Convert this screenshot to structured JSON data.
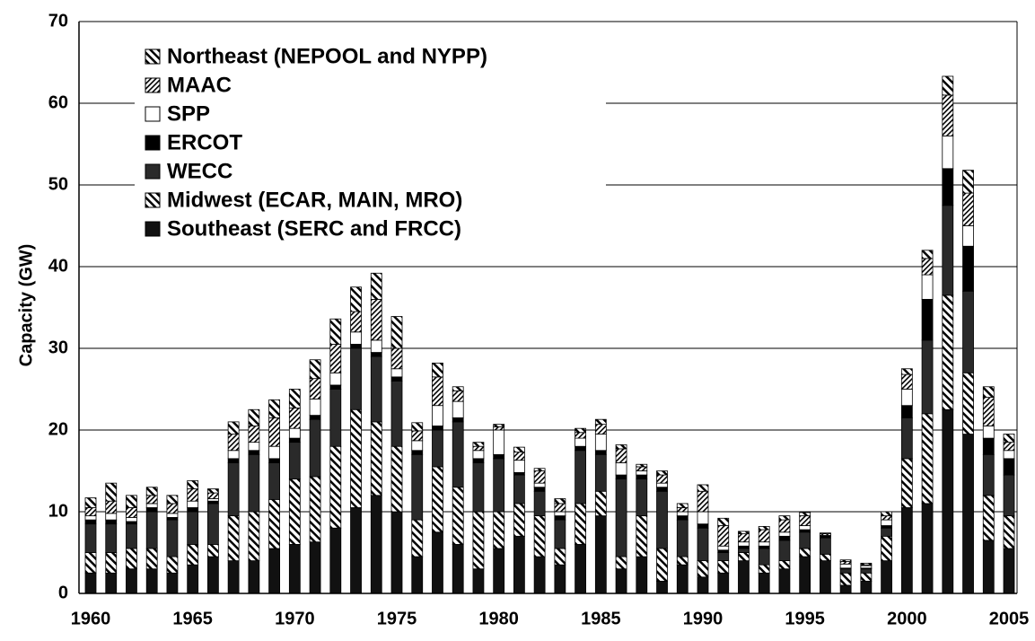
{
  "chart_data": {
    "type": "stacked-bar",
    "y_label": "Capacity (GW)",
    "categories": [
      "1960",
      null,
      null,
      null,
      null,
      "1965",
      null,
      null,
      null,
      null,
      "1970",
      null,
      null,
      null,
      null,
      "1975",
      null,
      null,
      null,
      null,
      "1980",
      null,
      null,
      null,
      null,
      "1985",
      null,
      null,
      null,
      null,
      "1990",
      null,
      null,
      null,
      null,
      "1995",
      null,
      null,
      null,
      null,
      "2000",
      null,
      null,
      null,
      null,
      "2005"
    ],
    "series": [
      {
        "name": "Southeast (SERC and FRCC)",
        "color": "#111111",
        "values": [
          2.5,
          2.5,
          3,
          3,
          2.5,
          3.5,
          4.5,
          4,
          4,
          5.5,
          6,
          6.3,
          8,
          10.5,
          12,
          10,
          4.5,
          7.5,
          6,
          3,
          5.5,
          7,
          4.5,
          3.5,
          6,
          9.5,
          3,
          4.5,
          1.5,
          3.5,
          2,
          2.5,
          4,
          2.5,
          3,
          4.5,
          4,
          1,
          1.5,
          4,
          10.5,
          11,
          22.5,
          19.5,
          6.5,
          5.5
        ]
      },
      {
        "name": "Midwest (ECAR, MAIN, MRO)",
        "color": "#111111",
        "hatch": "backslash",
        "values": [
          2.5,
          2.5,
          2.5,
          2.5,
          2,
          2.5,
          1.5,
          5.5,
          6,
          6,
          8,
          8,
          10,
          12,
          9,
          8,
          4.5,
          8,
          7,
          7,
          4.5,
          4,
          5,
          2,
          5,
          3,
          1.5,
          5,
          4,
          1,
          2,
          1.5,
          1,
          1,
          1,
          1,
          0.8,
          1.5,
          1,
          3,
          6,
          11,
          14,
          7.5,
          5.5,
          4
        ]
      },
      {
        "name": "WECC",
        "color": "#2a2a2a",
        "values": [
          3.5,
          3.5,
          3,
          4.5,
          4.5,
          4,
          5,
          6.5,
          7,
          4.5,
          4.5,
          7,
          7,
          7.5,
          8,
          8,
          8,
          4.5,
          8,
          6,
          6.5,
          3.5,
          3,
          3.5,
          6.5,
          4.5,
          9.5,
          4.5,
          7,
          4.5,
          4,
          1,
          0.5,
          2,
          2.5,
          2,
          2,
          0.5,
          0.5,
          1,
          5,
          9,
          11,
          10,
          5,
          5
        ]
      },
      {
        "name": "ERCOT",
        "color": "#000000",
        "values": [
          0.5,
          0.5,
          0.3,
          0.5,
          0.3,
          0.5,
          0.3,
          0.5,
          0.5,
          0.5,
          0.5,
          0.5,
          0.5,
          0.5,
          0.5,
          0.5,
          0.5,
          0.5,
          0.5,
          0.5,
          0.5,
          0.3,
          0.5,
          0.5,
          0.5,
          0.5,
          0.5,
          0.5,
          0.5,
          0.5,
          0.5,
          0.3,
          0.3,
          0.3,
          0.5,
          0.3,
          0.2,
          0.1,
          0.1,
          0.3,
          1.5,
          5,
          4.5,
          5.5,
          2,
          2
        ]
      },
      {
        "name": "SPP",
        "color": "#ffffff",
        "values": [
          0.5,
          0.8,
          0.5,
          0.5,
          0.5,
          0.8,
          0.3,
          1,
          1,
          1.5,
          1.2,
          2,
          1.5,
          1.5,
          1.5,
          1,
          1.2,
          2.5,
          2,
          1,
          3,
          1.5,
          0.5,
          0.5,
          1,
          2,
          1.5,
          0.5,
          0.5,
          0.5,
          1.5,
          0.5,
          0.5,
          0.5,
          0.5,
          0.5,
          0.1,
          0.5,
          0.3,
          0.7,
          2,
          3,
          4,
          2.5,
          1.5,
          1
        ]
      },
      {
        "name": "MAAC",
        "color": "#111111",
        "hatch": "slash",
        "values": [
          1,
          1.5,
          1.2,
          1,
          1.2,
          1.5,
          0.7,
          2,
          2,
          3.5,
          2.5,
          2.5,
          3.5,
          2.5,
          5,
          2.5,
          1.2,
          3.5,
          1.3,
          0.5,
          0.4,
          1,
          1.5,
          1,
          0.7,
          1.2,
          1.7,
          0.5,
          1,
          0.5,
          2.5,
          2.5,
          1,
          1.5,
          1.5,
          1.2,
          0.2,
          0.3,
          0.1,
          0.5,
          1.8,
          2,
          5,
          4,
          3.5,
          1
        ]
      },
      {
        "name": "Northeast (NEPOOL and NYPP)",
        "color": "#111111",
        "hatch": "backslash",
        "values": [
          1.2,
          2.2,
          1.5,
          1,
          1,
          1,
          0.5,
          1.5,
          2,
          2.2,
          2.3,
          2.3,
          3.1,
          3,
          3.2,
          3.9,
          1,
          1.7,
          0.5,
          0.5,
          0.3,
          0.6,
          0.3,
          0.6,
          0.5,
          0.6,
          0.5,
          0.3,
          0.5,
          0.5,
          0.8,
          0.9,
          0.3,
          0.4,
          0.5,
          0.4,
          0.1,
          0.2,
          0.2,
          0.5,
          0.7,
          1,
          2.3,
          2.8,
          1.3,
          1
        ]
      }
    ],
    "ylim": [
      0,
      70
    ],
    "yticks": [
      0,
      10,
      20,
      30,
      40,
      50,
      60,
      70
    ],
    "grid": true,
    "legend": "top-left"
  }
}
